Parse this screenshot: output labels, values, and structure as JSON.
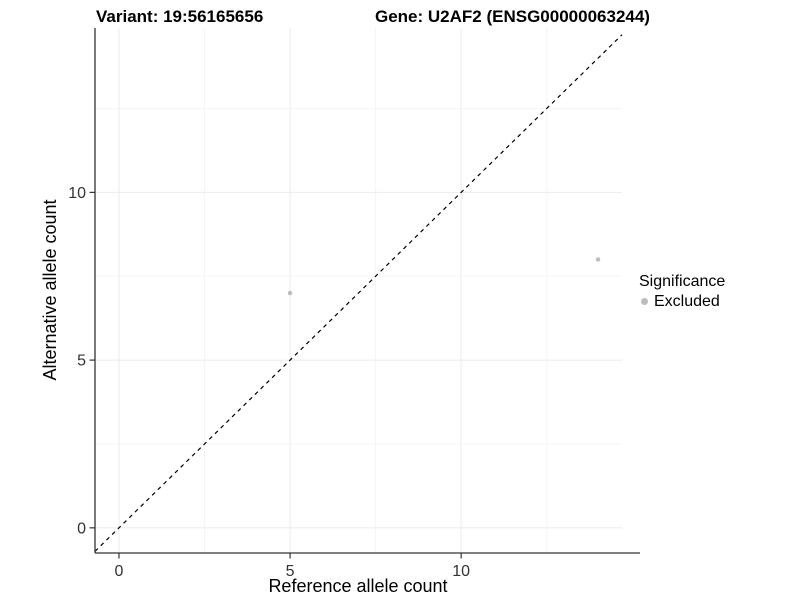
{
  "chart_data": {
    "type": "scatter",
    "title_left": "Variant: 19:56165656",
    "title_right": "Gene: U2AF2 (ENSG00000063244)",
    "xlabel": "Reference allele count",
    "ylabel": "Alternative allele count",
    "xlim": [
      -0.7,
      14.7
    ],
    "ylim": [
      -0.75,
      14.9
    ],
    "xticks": [
      0,
      5,
      10
    ],
    "yticks": [
      0,
      5,
      10
    ],
    "xminor": [
      2.5,
      7.5,
      12.5
    ],
    "yminor": [
      2.5,
      7.5,
      12.5
    ],
    "grid": "major+minor",
    "reference_line": {
      "type": "identity",
      "slope": 1,
      "intercept": 0,
      "style": "dashed",
      "color": "#000000"
    },
    "series": [
      {
        "name": "Excluded",
        "marker": "circle",
        "color": "#bdbdbd",
        "points": [
          [
            5,
            7
          ],
          [
            14,
            8
          ]
        ]
      }
    ],
    "legend": {
      "title": "Significance",
      "position": "right",
      "entries": [
        {
          "label": "Excluded",
          "color": "#bdbdbd"
        }
      ]
    }
  },
  "colors": {
    "background": "#ffffff",
    "axis_line": "#333333",
    "tick_mark": "#333333",
    "tick_label": "#333333",
    "grid_major": "#ebebeb",
    "grid_minor": "#f5f5f5",
    "point": "#bdbdbd",
    "reference_line": "#000000"
  }
}
